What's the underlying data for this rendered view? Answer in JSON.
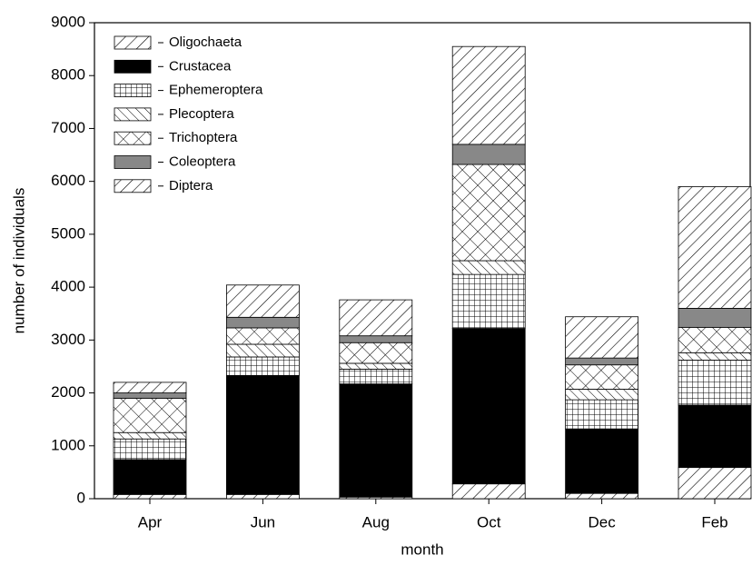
{
  "chart_data": {
    "type": "stacked-bar",
    "x_label": "month",
    "y_label": "number of individuals",
    "categories": [
      "Apr",
      "Jun",
      "Aug",
      "Oct",
      "Dec",
      "Feb"
    ],
    "ylim": [
      0,
      9000
    ],
    "yticks": [
      0,
      1000,
      2000,
      3000,
      4000,
      5000,
      6000,
      7000,
      8000,
      9000
    ],
    "legend": "top-left",
    "series": [
      {
        "name": "Oligochaeta",
        "color": "#ffffff",
        "pattern": "diagonal",
        "values": [
          80,
          80,
          30,
          280,
          100,
          590
        ]
      },
      {
        "name": "Crustacea",
        "color": "#000000",
        "pattern": "solid",
        "values": [
          660,
          2250,
          2140,
          2940,
          1220,
          1180
        ]
      },
      {
        "name": "Ephemeroptera",
        "color": "#ffffff",
        "pattern": "grid",
        "values": [
          390,
          350,
          280,
          1020,
          550,
          850
        ]
      },
      {
        "name": "Plecoptera",
        "color": "#ffffff",
        "pattern": "backdiagonal",
        "values": [
          120,
          240,
          110,
          260,
          200,
          140
        ]
      },
      {
        "name": "Trichoptera",
        "color": "#ffffff",
        "pattern": "crosshatch",
        "values": [
          650,
          310,
          390,
          1820,
          460,
          480
        ]
      },
      {
        "name": "Coleoptera",
        "color": "#888888",
        "pattern": "solid",
        "values": [
          100,
          200,
          130,
          380,
          130,
          360
        ]
      },
      {
        "name": "Diptera",
        "color": "#ffffff",
        "pattern": "diagonal",
        "values": [
          200,
          610,
          680,
          1850,
          780,
          2300
        ]
      }
    ]
  }
}
